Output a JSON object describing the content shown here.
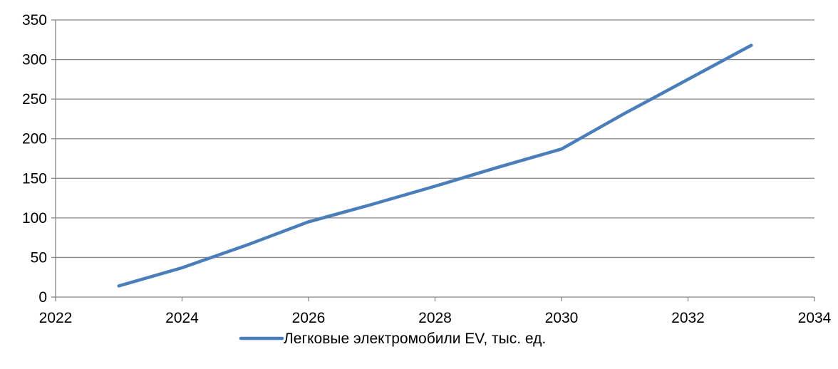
{
  "chart_data": {
    "type": "line",
    "title": "",
    "xlabel": "",
    "ylabel": "",
    "xlim": [
      2022,
      2034
    ],
    "ylim": [
      0,
      350
    ],
    "x_ticks": [
      2022,
      2024,
      2026,
      2028,
      2030,
      2032,
      2034
    ],
    "y_ticks": [
      0,
      50,
      100,
      150,
      200,
      250,
      300,
      350
    ],
    "grid": "horizontal",
    "legend_position": "bottom-center",
    "series": [
      {
        "name": "Легковые электромобили EV, тыс. ед.",
        "color": "#4a7ebb",
        "x": [
          2023,
          2024,
          2025,
          2026,
          2027,
          2028,
          2029,
          2030,
          2031,
          2032,
          2033
        ],
        "y": [
          14,
          37,
          65,
          95,
          117,
          140,
          164,
          187,
          232,
          275,
          318
        ]
      }
    ]
  }
}
